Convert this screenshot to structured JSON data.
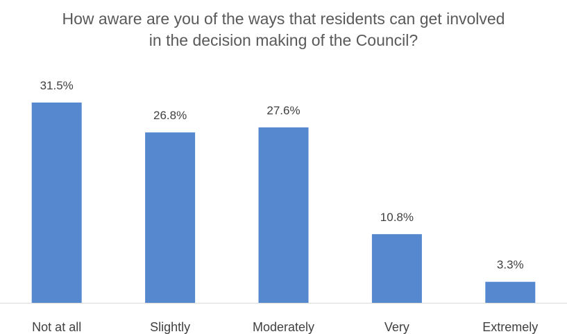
{
  "chart_data": {
    "type": "bar",
    "title_lines": [
      "How aware are you of the ways that residents can get involved",
      "in the decision making of the Council?"
    ],
    "categories": [
      "Not at all",
      "Slightly",
      "Moderately",
      "Very",
      "Extremely"
    ],
    "values": [
      31.5,
      26.8,
      27.6,
      10.8,
      3.3
    ],
    "data_labels": [
      "31.5%",
      "26.8%",
      "27.6%",
      "10.8%",
      "3.3%"
    ],
    "value_unit": "%",
    "ylim": [
      0,
      31.5
    ],
    "grid": false,
    "legend": "none",
    "bar_color": "#5588CF",
    "baseline_color": "#D9D9D9"
  }
}
